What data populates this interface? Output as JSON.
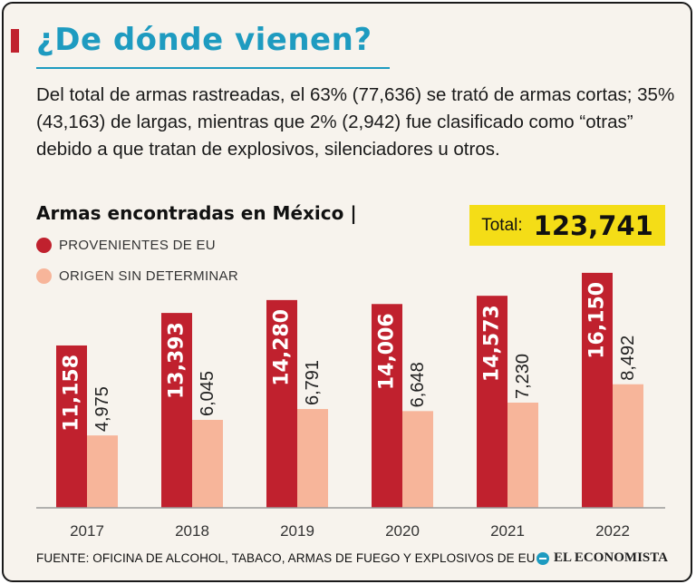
{
  "header": {
    "title": "¿De dónde vienen?",
    "intro": "Del total de armas rastreadas, el 63% (77,636) se trató de armas cortas; 35% (43,163) de largas, mientras que 2% (2,942) fue clasificado como “otras” debido a que tratan de explosivos, silenciadores u otros."
  },
  "total": {
    "label": "Total:",
    "value": "123,741"
  },
  "colors": {
    "accent": "#c0212e",
    "secondary": "#f7b59a",
    "title": "#1e9bc0",
    "highlight": "#f4dd17"
  },
  "chart_data": {
    "type": "bar",
    "title": "Armas encontradas en México |",
    "categories": [
      "2017",
      "2018",
      "2019",
      "2020",
      "2021",
      "2022"
    ],
    "series": [
      {
        "name": "PROVENIENTES DE EU",
        "values": [
          11158,
          13393,
          14280,
          14006,
          14573,
          16150
        ],
        "labels": [
          "11,158",
          "13,393",
          "14,280",
          "14,006",
          "14,573",
          "16,150"
        ]
      },
      {
        "name": "ORIGEN SIN DETERMINAR",
        "values": [
          4975,
          6045,
          6791,
          6648,
          7230,
          8492
        ],
        "labels": [
          "4,975",
          "6,045",
          "6,791",
          "6,648",
          "7,230",
          "8,492"
        ]
      }
    ],
    "xlabel": "",
    "ylabel": "",
    "ylim": [
      0,
      17700
    ],
    "legend": "top-left",
    "grid": false
  },
  "footer": {
    "source": "FUENTE: OFICINA DE ALCOHOL, TABACO, ARMAS DE FUEGO Y EXPLOSIVOS DE EU",
    "brand": "EL ECONOMISTA"
  }
}
